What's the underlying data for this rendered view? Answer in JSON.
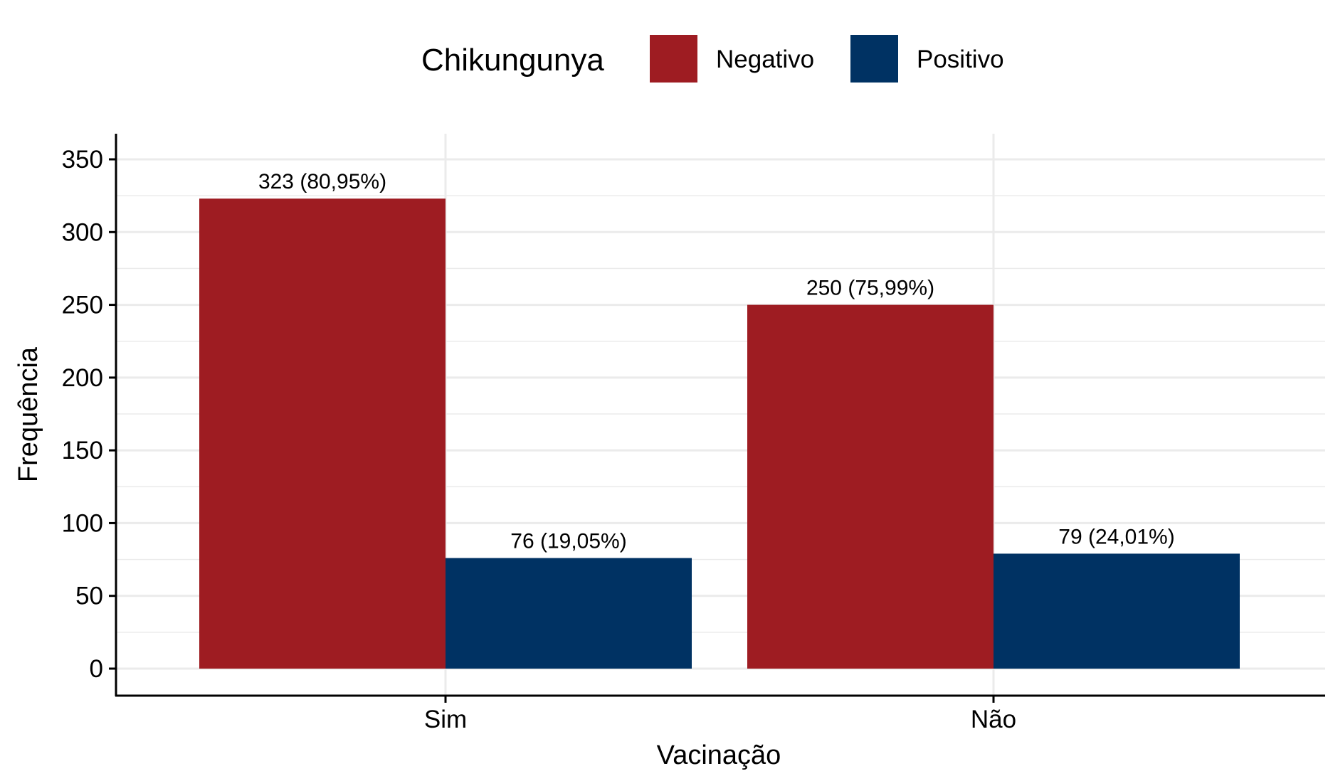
{
  "chart_data": {
    "type": "bar",
    "title": "",
    "xlabel": "Vacinação",
    "ylabel": "Frequência",
    "categories": [
      "Sim",
      "Não"
    ],
    "series": [
      {
        "name": "Negativo",
        "values": [
          323,
          250
        ],
        "labels": [
          "323 (80,95%)",
          "250 (75,99%)"
        ],
        "color": "#9e1c22"
      },
      {
        "name": "Positivo",
        "values": [
          76,
          79
        ],
        "labels": [
          "76 (19,05%)",
          "79 (24,01%)"
        ],
        "color": "#003263"
      }
    ],
    "ylim": [
      0,
      350
    ],
    "yticks": [
      0,
      50,
      100,
      150,
      200,
      250,
      300,
      350
    ],
    "grid": true,
    "legend": {
      "title": "Chikungunya",
      "position": "top"
    }
  }
}
